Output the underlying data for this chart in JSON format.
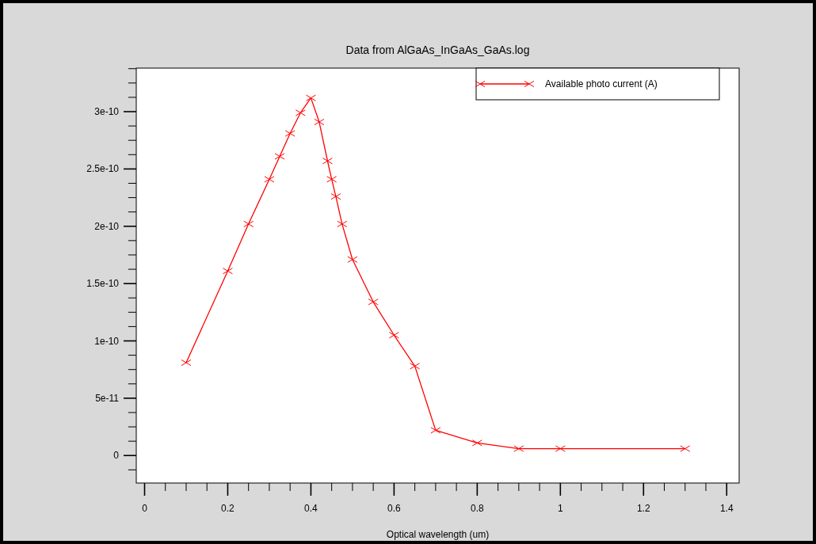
{
  "chart_data": {
    "type": "line",
    "title": "Data from AlGaAs_InGaAs_GaAs.log",
    "xlabel": "Optical wavelength (um)",
    "x": [
      0.1,
      0.2,
      0.25,
      0.3,
      0.325,
      0.35,
      0.375,
      0.4,
      0.42,
      0.44,
      0.45,
      0.46,
      0.475,
      0.5,
      0.55,
      0.6,
      0.65,
      0.7,
      0.8,
      0.9,
      1.0,
      1.3
    ],
    "series": [
      {
        "name": "Available photo current (A)",
        "color": "#ff0000",
        "values": [
          8.1e-11,
          1.61e-10,
          2.02e-10,
          2.41e-10,
          2.61e-10,
          2.81e-10,
          2.99e-10,
          3.12e-10,
          2.91e-10,
          2.57e-10,
          2.41e-10,
          2.26e-10,
          2.02e-10,
          1.71e-10,
          1.34e-10,
          1.05e-10,
          7.8e-11,
          2.2e-11,
          1.1e-11,
          6e-12,
          6e-12,
          6e-12
        ]
      }
    ],
    "xlim": [
      -0.02,
      1.43
    ],
    "ylim": [
      -2.4e-11,
      3.38e-10
    ],
    "xticks": [
      0,
      {
        "value": 0.05,
        "label": null
      },
      {
        "value": 0.1,
        "label": null
      },
      {
        "value": 0.15,
        "label": null
      },
      0.2,
      {
        "value": 0.25,
        "label": null
      },
      {
        "value": 0.3,
        "label": null
      },
      {
        "value": 0.35,
        "label": null
      },
      0.4,
      {
        "value": 0.45,
        "label": null
      },
      {
        "value": 0.5,
        "label": null
      },
      {
        "value": 0.55,
        "label": null
      },
      0.6,
      {
        "value": 0.65,
        "label": null
      },
      {
        "value": 0.7,
        "label": null
      },
      {
        "value": 0.75,
        "label": null
      },
      0.8,
      {
        "value": 0.85,
        "label": null
      },
      {
        "value": 0.9,
        "label": null
      },
      {
        "value": 0.95,
        "label": null
      },
      1,
      {
        "value": 1.05,
        "label": null
      },
      {
        "value": 1.1,
        "label": null
      },
      {
        "value": 1.15,
        "label": null
      },
      1.2,
      {
        "value": 1.25,
        "label": null
      },
      {
        "value": 1.3,
        "label": null
      },
      {
        "value": 1.35,
        "label": null
      },
      1.4
    ],
    "yticks": [
      {
        "value": -1.25e-11,
        "label": null
      },
      {
        "value": 0,
        "label": "0"
      },
      {
        "value": 1.25e-11,
        "label": null
      },
      {
        "value": 2.5e-11,
        "label": null
      },
      {
        "value": 3.75e-11,
        "label": null
      },
      {
        "value": 5e-11,
        "label": "5e-11"
      },
      {
        "value": 6.25e-11,
        "label": null
      },
      {
        "value": 7.5e-11,
        "label": null
      },
      {
        "value": 8.75e-11,
        "label": null
      },
      {
        "value": 1e-10,
        "label": "1e-10"
      },
      {
        "value": 1.125e-10,
        "label": null
      },
      {
        "value": 1.25e-10,
        "label": null
      },
      {
        "value": 1.375e-10,
        "label": null
      },
      {
        "value": 1.5e-10,
        "label": "1.5e-10"
      },
      {
        "value": 1.625e-10,
        "label": null
      },
      {
        "value": 1.75e-10,
        "label": null
      },
      {
        "value": 1.875e-10,
        "label": null
      },
      {
        "value": 2e-10,
        "label": "2e-10"
      },
      {
        "value": 2.125e-10,
        "label": null
      },
      {
        "value": 2.25e-10,
        "label": null
      },
      {
        "value": 2.375e-10,
        "label": null
      },
      {
        "value": 2.5e-10,
        "label": "2.5e-10"
      },
      {
        "value": 2.625e-10,
        "label": null
      },
      {
        "value": 2.75e-10,
        "label": null
      },
      {
        "value": 2.875e-10,
        "label": null
      },
      {
        "value": 3e-10,
        "label": "3e-10"
      },
      {
        "value": 3.125e-10,
        "label": null
      },
      {
        "value": 3.25e-10,
        "label": null
      },
      {
        "value": 3.375e-10,
        "label": null
      }
    ],
    "legend": "top right",
    "marker": "cross",
    "line_style": "solid",
    "grid": false
  }
}
